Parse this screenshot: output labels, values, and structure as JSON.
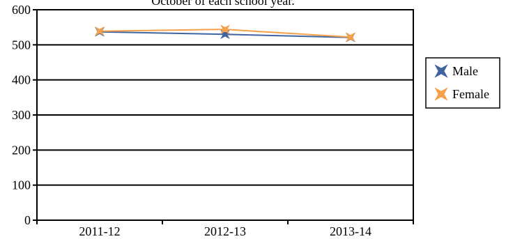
{
  "chart_data": {
    "type": "line",
    "title": "October of each school year.",
    "xlabel": "",
    "ylabel": "",
    "categories": [
      "2011-12",
      "2012-13",
      "2013-14"
    ],
    "ylim": [
      0,
      600
    ],
    "yticks": [
      0,
      100,
      200,
      300,
      400,
      500,
      600
    ],
    "grid": true,
    "legend_position": "right",
    "series": [
      {
        "name": "Male",
        "values": [
          537,
          530,
          521
        ],
        "color": "#3f64a0",
        "marker": "star-4"
      },
      {
        "name": "Female",
        "values": [
          539,
          544,
          522
        ],
        "color": "#f5a04a",
        "marker": "star-4"
      }
    ]
  }
}
